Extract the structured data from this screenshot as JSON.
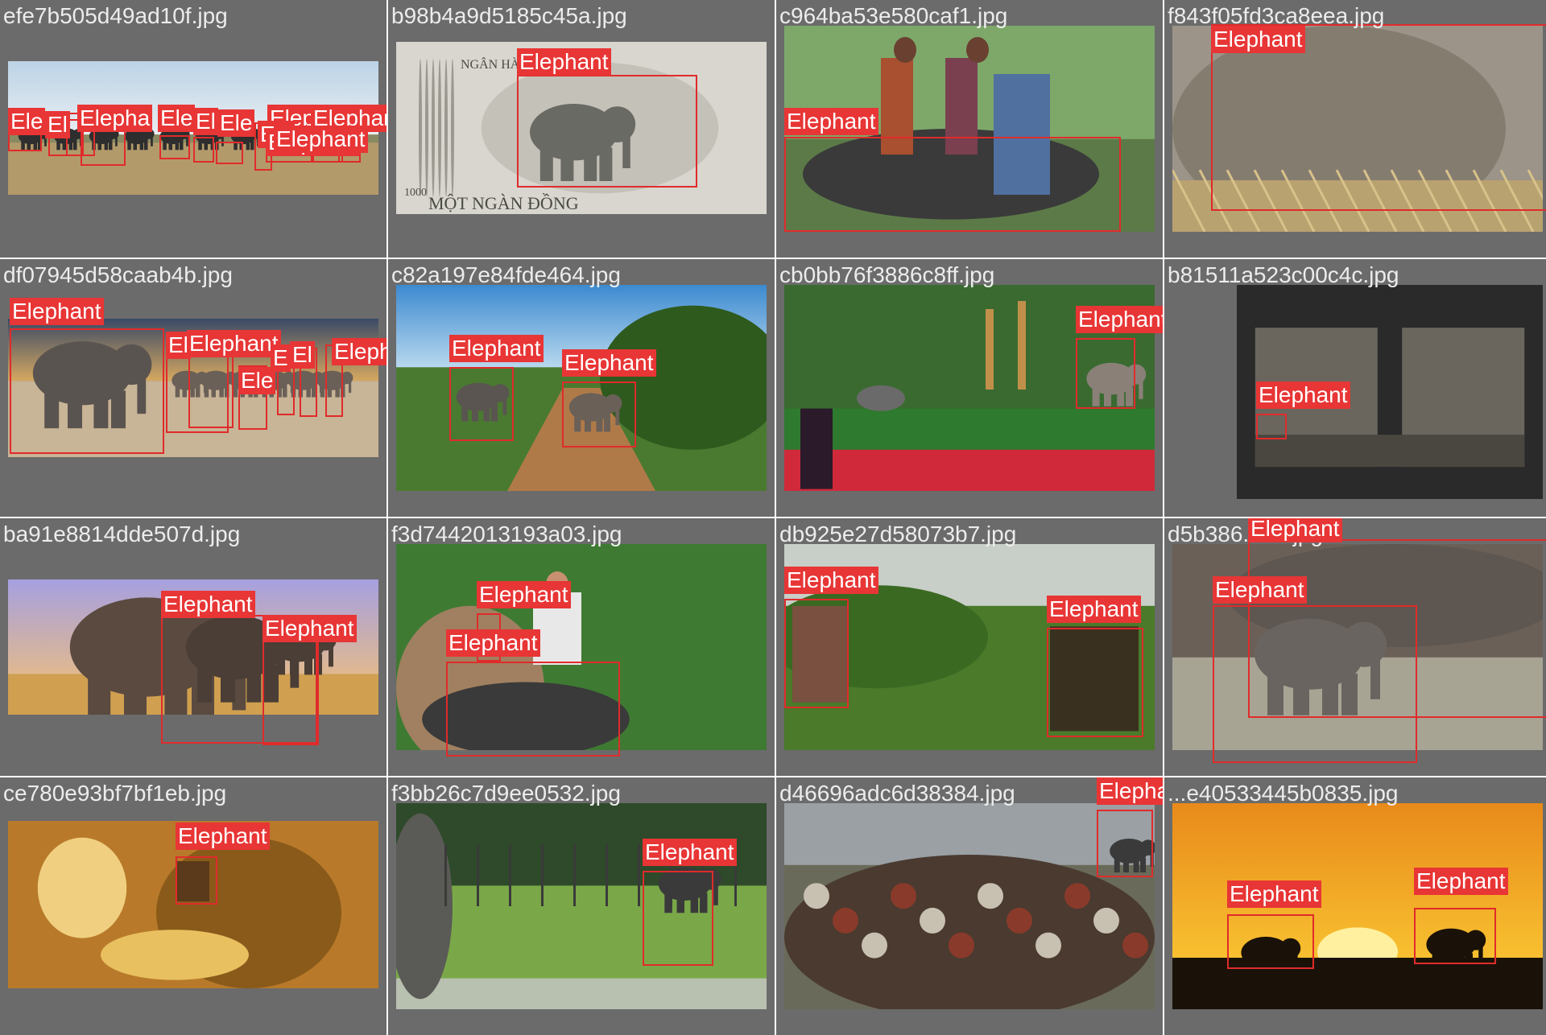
{
  "colors": {
    "tile_bg": "#6b6b6b",
    "box": "#e02b2b",
    "label_bg": "#e83535",
    "label_text": "#ffffff",
    "filename_text": "#ececec"
  },
  "tiles": [
    {
      "filename": "efe7b505d49ad10f.jpg",
      "labels": [
        "Ele",
        "El",
        "Elepha",
        "Ele",
        "El",
        "Ele",
        "Elephant",
        "Elephant",
        "Ele",
        "Elephant",
        "Elephant"
      ]
    },
    {
      "filename": "b98b4a9d5185c45a.jpg",
      "labels": [
        "Elephant"
      ],
      "photo_text": [
        "NGÂN HÀNG",
        "MỘT NGÀN ĐỒNG",
        "1000"
      ]
    },
    {
      "filename": "c964ba53e580caf1.jpg",
      "labels": [
        "Elephant"
      ]
    },
    {
      "filename": "f843f05fd3ca8eea.jpg",
      "labels": [
        "Elephant"
      ]
    },
    {
      "filename": "df07945d58caab4b.jpg",
      "labels": [
        "Elephant",
        "El",
        "Elephant",
        "Ele",
        "E",
        "El",
        "Elephant"
      ]
    },
    {
      "filename": "c82a197e84fde464.jpg",
      "labels": [
        "Elephant",
        "Elephant"
      ]
    },
    {
      "filename": "cb0bb76f3886c8ff.jpg",
      "labels": [
        "Elephant"
      ]
    },
    {
      "filename": "b81511a523c00c4c.jpg",
      "labels": [
        "Elephant"
      ]
    },
    {
      "filename": "ba91e8814dde507d.jpg",
      "labels": [
        "Elephant",
        "Elephant"
      ]
    },
    {
      "filename": "f3d7442013193a03.jpg",
      "labels": [
        "Elephant",
        "Elephant"
      ]
    },
    {
      "filename": "db925e27d58073b7.jpg",
      "labels": [
        "Elephant",
        "Elephant"
      ]
    },
    {
      "filename": "d5b386...8d.jpg",
      "labels": [
        "Elephant",
        "Elephant"
      ]
    },
    {
      "filename": "ce780e93bf7bf1eb.jpg",
      "labels": [
        "Elephant"
      ]
    },
    {
      "filename": "f3bb26c7d9ee0532.jpg",
      "labels": [
        "Elephant"
      ]
    },
    {
      "filename": "d46696adc6d38384.jpg",
      "labels": [
        "Elephant"
      ]
    },
    {
      "filename": "...e40533445b0835.jpg",
      "labels": [
        "Elephant",
        "Elephant"
      ]
    }
  ]
}
